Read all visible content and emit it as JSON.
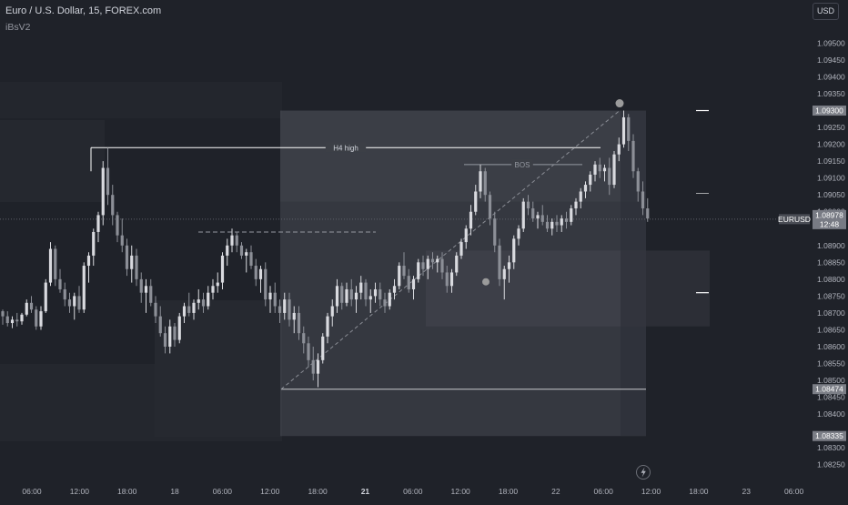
{
  "header": {
    "title": "Euro / U.S. Dollar, 15, FOREX.com",
    "indicator": "iBsV2"
  },
  "currency": "USD",
  "colors": {
    "background": "#1f2229",
    "candle_up": "#d9dadf",
    "candle_down": "#8c8f97",
    "zone": "#5a5d66",
    "line": "#ffffff",
    "marker": "#9b9b9b"
  },
  "chart_data": {
    "type": "candlestick",
    "symbol": "EURUSD",
    "timeframe": "15",
    "x_ticks": [
      {
        "label": "06:00",
        "bold": false
      },
      {
        "label": "12:00",
        "bold": false
      },
      {
        "label": "18:00",
        "bold": false
      },
      {
        "label": "18",
        "bold": false
      },
      {
        "label": "06:00",
        "bold": false
      },
      {
        "label": "12:00",
        "bold": false
      },
      {
        "label": "18:00",
        "bold": false
      },
      {
        "label": "21",
        "bold": true
      },
      {
        "label": "06:00",
        "bold": false
      },
      {
        "label": "12:00",
        "bold": false
      },
      {
        "label": "18:00",
        "bold": false
      },
      {
        "label": "22",
        "bold": false
      },
      {
        "label": "06:00",
        "bold": false
      },
      {
        "label": "12:00",
        "bold": false
      },
      {
        "label": "18:00",
        "bold": false
      },
      {
        "label": "23",
        "bold": false
      },
      {
        "label": "06:00",
        "bold": false
      }
    ],
    "y_ticks": [
      "1.09500",
      "1.09450",
      "1.09400",
      "1.09350",
      "1.09250",
      "1.09200",
      "1.09150",
      "1.09100",
      "1.09050",
      "1.09000",
      "1.08900",
      "1.08850",
      "1.08800",
      "1.08750",
      "1.08700",
      "1.08650",
      "1.08600",
      "1.08550",
      "1.08500",
      "1.08450",
      "1.08400",
      "1.08300",
      "1.08250"
    ],
    "ylim": [
      1.08225,
      1.09555
    ],
    "labels": [
      {
        "text": "1.09300",
        "price": 1.093,
        "style": "zone"
      },
      {
        "text": "EURUSD",
        "price": 1.08978,
        "style": "symbol"
      },
      {
        "text": "1.08978",
        "price": 1.08978,
        "style": "last"
      },
      {
        "text": "12:48",
        "price": 1.08978,
        "style": "countdown"
      },
      {
        "text": "1.08474",
        "price": 1.08474,
        "style": "zone"
      },
      {
        "text": "1.08335",
        "price": 1.08335,
        "style": "zone"
      }
    ],
    "annotations": [
      {
        "text": "H4 high",
        "price": 1.0919
      },
      {
        "text": "BOS",
        "price": 1.0914
      }
    ],
    "price_levels": [
      1.093,
      1.09055,
      1.0876
    ],
    "last_price": 1.08978,
    "candles": [
      [
        1.08705,
        1.0871,
        1.08665,
        1.0869
      ],
      [
        1.0869,
        1.08705,
        1.0866,
        1.0867
      ],
      [
        1.0867,
        1.0869,
        1.08655,
        1.0868
      ],
      [
        1.0868,
        1.087,
        1.0866,
        1.08675
      ],
      [
        1.08675,
        1.087,
        1.08665,
        1.08695
      ],
      [
        1.08695,
        1.0874,
        1.0869,
        1.0873
      ],
      [
        1.0873,
        1.0875,
        1.087,
        1.0871
      ],
      [
        1.0871,
        1.0872,
        1.0865,
        1.0866
      ],
      [
        1.0866,
        1.0872,
        1.0865,
        1.08705
      ],
      [
        1.08705,
        1.088,
        1.087,
        1.0879
      ],
      [
        1.0879,
        1.0891,
        1.0878,
        1.0889
      ],
      [
        1.0889,
        1.089,
        1.0878,
        1.088
      ],
      [
        1.088,
        1.0883,
        1.0876,
        1.0877
      ],
      [
        1.0877,
        1.0879,
        1.0872,
        1.0874
      ],
      [
        1.0874,
        1.0876,
        1.087,
        1.0872
      ],
      [
        1.0872,
        1.0876,
        1.0868,
        1.0875
      ],
      [
        1.0875,
        1.0878,
        1.087,
        1.0871
      ],
      [
        1.0871,
        1.0885,
        1.087,
        1.0884
      ],
      [
        1.0884,
        1.0888,
        1.0879,
        1.0887
      ],
      [
        1.0887,
        1.0895,
        1.0884,
        1.0894
      ],
      [
        1.0894,
        1.09,
        1.0891,
        1.0899
      ],
      [
        1.0899,
        1.0915,
        1.0896,
        1.0913
      ],
      [
        1.0913,
        1.0919,
        1.0902,
        1.0905
      ],
      [
        1.0905,
        1.0908,
        1.0896,
        1.0899
      ],
      [
        1.0899,
        1.09,
        1.0891,
        1.0893
      ],
      [
        1.0893,
        1.0898,
        1.0888,
        1.089
      ],
      [
        1.089,
        1.0892,
        1.0881,
        1.0883
      ],
      [
        1.0883,
        1.089,
        1.0879,
        1.0887
      ],
      [
        1.0887,
        1.0889,
        1.0878,
        1.088
      ],
      [
        1.088,
        1.0882,
        1.0873,
        1.0876
      ],
      [
        1.0876,
        1.088,
        1.087,
        1.0878
      ],
      [
        1.0878,
        1.088,
        1.0872,
        1.0873
      ],
      [
        1.0873,
        1.0875,
        1.0867,
        1.0869
      ],
      [
        1.0869,
        1.0872,
        1.0863,
        1.0864
      ],
      [
        1.0864,
        1.0866,
        1.0858,
        1.086
      ],
      [
        1.086,
        1.0868,
        1.0858,
        1.0866
      ],
      [
        1.0866,
        1.0867,
        1.086,
        1.0862
      ],
      [
        1.0862,
        1.087,
        1.0861,
        1.0869
      ],
      [
        1.0869,
        1.0873,
        1.0867,
        1.0872
      ],
      [
        1.0872,
        1.0876,
        1.0869,
        1.087
      ],
      [
        1.087,
        1.0874,
        1.0868,
        1.0873
      ],
      [
        1.0873,
        1.0877,
        1.0871,
        1.0874
      ],
      [
        1.0874,
        1.0876,
        1.087,
        1.0872
      ],
      [
        1.0872,
        1.0878,
        1.0871,
        1.0876
      ],
      [
        1.0876,
        1.088,
        1.0874,
        1.0878
      ],
      [
        1.0878,
        1.0882,
        1.0876,
        1.0879
      ],
      [
        1.0879,
        1.0888,
        1.0877,
        1.0887
      ],
      [
        1.0887,
        1.0892,
        1.0884,
        1.089
      ],
      [
        1.089,
        1.0895,
        1.0888,
        1.0893
      ],
      [
        1.0893,
        1.0894,
        1.0888,
        1.089
      ],
      [
        1.089,
        1.0891,
        1.0886,
        1.0887
      ],
      [
        1.0887,
        1.0889,
        1.0882,
        1.0888
      ],
      [
        1.0888,
        1.089,
        1.0883,
        1.0884
      ],
      [
        1.0884,
        1.0886,
        1.0878,
        1.088
      ],
      [
        1.088,
        1.0884,
        1.0876,
        1.0883
      ],
      [
        1.0883,
        1.0885,
        1.0872,
        1.0874
      ],
      [
        1.0874,
        1.0878,
        1.087,
        1.0876
      ],
      [
        1.0876,
        1.0879,
        1.087,
        1.0872
      ],
      [
        1.0872,
        1.0874,
        1.0867,
        1.087
      ],
      [
        1.087,
        1.0876,
        1.0868,
        1.0874
      ],
      [
        1.0874,
        1.0876,
        1.0866,
        1.0868
      ],
      [
        1.0868,
        1.0872,
        1.0864,
        1.087
      ],
      [
        1.087,
        1.0872,
        1.0862,
        1.0864
      ],
      [
        1.0864,
        1.0866,
        1.0858,
        1.0861
      ],
      [
        1.0861,
        1.0863,
        1.0854,
        1.0856
      ],
      [
        1.0856,
        1.086,
        1.085,
        1.0852
      ],
      [
        1.0852,
        1.0858,
        1.0848,
        1.0856
      ],
      [
        1.0856,
        1.0864,
        1.0855,
        1.0863
      ],
      [
        1.0863,
        1.087,
        1.0861,
        1.0869
      ],
      [
        1.0869,
        1.0874,
        1.0866,
        1.0872
      ],
      [
        1.0872,
        1.088,
        1.087,
        1.0878
      ],
      [
        1.0878,
        1.0879,
        1.0871,
        1.0873
      ],
      [
        1.0873,
        1.0879,
        1.0872,
        1.0877
      ],
      [
        1.0877,
        1.088,
        1.0872,
        1.0874
      ],
      [
        1.0874,
        1.0878,
        1.087,
        1.0876
      ],
      [
        1.0876,
        1.0881,
        1.0874,
        1.0879
      ],
      [
        1.0879,
        1.088,
        1.0872,
        1.0874
      ],
      [
        1.0874,
        1.0877,
        1.087,
        1.0875
      ],
      [
        1.0875,
        1.0879,
        1.0873,
        1.0877
      ],
      [
        1.0877,
        1.0879,
        1.0872,
        1.0874
      ],
      [
        1.0874,
        1.0876,
        1.087,
        1.0872
      ],
      [
        1.0872,
        1.0877,
        1.0871,
        1.0876
      ],
      [
        1.0876,
        1.088,
        1.0874,
        1.0878
      ],
      [
        1.0878,
        1.0885,
        1.0877,
        1.0884
      ],
      [
        1.0884,
        1.0888,
        1.088,
        1.0881
      ],
      [
        1.0881,
        1.0883,
        1.0876,
        1.0877
      ],
      [
        1.0877,
        1.0881,
        1.0874,
        1.088
      ],
      [
        1.088,
        1.0886,
        1.0879,
        1.0885
      ],
      [
        1.0885,
        1.0887,
        1.0881,
        1.0883
      ],
      [
        1.0883,
        1.0887,
        1.088,
        1.0886
      ],
      [
        1.0886,
        1.0888,
        1.0883,
        1.0885
      ],
      [
        1.0885,
        1.0887,
        1.0882,
        1.0886
      ],
      [
        1.0886,
        1.0888,
        1.088,
        1.0882
      ],
      [
        1.0882,
        1.0884,
        1.0876,
        1.0878
      ],
      [
        1.0878,
        1.0883,
        1.0876,
        1.0882
      ],
      [
        1.0882,
        1.0888,
        1.0881,
        1.0887
      ],
      [
        1.0887,
        1.0892,
        1.0886,
        1.0891
      ],
      [
        1.0891,
        1.0896,
        1.0889,
        1.0895
      ],
      [
        1.0895,
        1.0902,
        1.0893,
        1.09
      ],
      [
        1.09,
        1.0908,
        1.0899,
        1.0906
      ],
      [
        1.0906,
        1.0914,
        1.0904,
        1.0912
      ],
      [
        1.0912,
        1.0913,
        1.0903,
        1.0905
      ],
      [
        1.0905,
        1.0906,
        1.0896,
        1.0898
      ],
      [
        1.0898,
        1.09,
        1.0888,
        1.089
      ],
      [
        1.089,
        1.0892,
        1.0878,
        1.088
      ],
      [
        1.088,
        1.0884,
        1.0874,
        1.0883
      ],
      [
        1.0883,
        1.0887,
        1.0879,
        1.0885
      ],
      [
        1.0885,
        1.0893,
        1.0883,
        1.0892
      ],
      [
        1.0892,
        1.0896,
        1.089,
        1.0895
      ],
      [
        1.0895,
        1.0904,
        1.0894,
        1.0903
      ],
      [
        1.0903,
        1.0905,
        1.0899,
        1.0901
      ],
      [
        1.0901,
        1.0903,
        1.0897,
        1.0898
      ],
      [
        1.0898,
        1.09,
        1.0895,
        1.0899
      ],
      [
        1.0899,
        1.0902,
        1.0896,
        1.0897
      ],
      [
        1.0897,
        1.0899,
        1.0894,
        1.0895
      ],
      [
        1.0895,
        1.0898,
        1.0893,
        1.0897
      ],
      [
        1.0897,
        1.0899,
        1.0894,
        1.0896
      ],
      [
        1.0896,
        1.0899,
        1.0894,
        1.0898
      ],
      [
        1.0898,
        1.09,
        1.0895,
        1.0897
      ],
      [
        1.0897,
        1.0902,
        1.0896,
        1.0901
      ],
      [
        1.0901,
        1.0904,
        1.0899,
        1.0903
      ],
      [
        1.0903,
        1.0907,
        1.0901,
        1.0906
      ],
      [
        1.0906,
        1.0909,
        1.0904,
        1.0908
      ],
      [
        1.0908,
        1.0912,
        1.0906,
        1.0911
      ],
      [
        1.0911,
        1.0915,
        1.0909,
        1.0914
      ],
      [
        1.0914,
        1.0916,
        1.091,
        1.0912
      ],
      [
        1.0912,
        1.0914,
        1.0909,
        1.0913
      ],
      [
        1.0913,
        1.0916,
        1.0905,
        1.0908
      ],
      [
        1.0908,
        1.0918,
        1.0907,
        1.0917
      ],
      [
        1.0917,
        1.0922,
        1.0915,
        1.092
      ],
      [
        1.092,
        1.093,
        1.0919,
        1.0928
      ],
      [
        1.0928,
        1.0929,
        1.0918,
        1.0921
      ],
      [
        1.0921,
        1.0923,
        1.091,
        1.0912
      ],
      [
        1.0912,
        1.0913,
        1.0903,
        1.0906
      ],
      [
        1.0906,
        1.0909,
        1.0899,
        1.0901
      ],
      [
        1.0901,
        1.0904,
        1.0897,
        1.0898
      ]
    ]
  }
}
